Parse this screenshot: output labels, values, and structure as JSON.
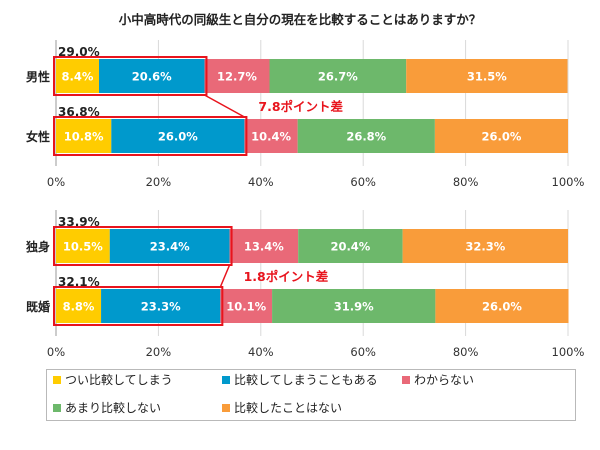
{
  "chart_data": {
    "type": "bar",
    "stacked": true,
    "orientation": "horizontal",
    "title": "小中高時代の同級生と自分の現在を比較することはありますか？",
    "xlim": [
      0,
      100
    ],
    "x_tick_labels": [
      "0%",
      "20%",
      "40%",
      "60%",
      "80%",
      "100%"
    ],
    "series_names": [
      "つい比較してしまう",
      "比較してしまうこともある",
      "わからない",
      "あまり比較しない",
      "比較したことはない"
    ],
    "colors": [
      "#FFCC00",
      "#0099CC",
      "#E96978",
      "#6DB86B",
      "#F99C3A"
    ],
    "panels": [
      {
        "categories": [
          "男性",
          "女性"
        ],
        "values": [
          [
            8.4,
            20.6,
            12.7,
            26.7,
            31.5
          ],
          [
            10.8,
            26.0,
            10.4,
            26.8,
            26.0
          ]
        ],
        "labels": [
          [
            "8.4%",
            "20.6%",
            "12.7%",
            "26.7%",
            "31.5%"
          ],
          [
            "10.8%",
            "26.0%",
            "10.4%",
            "26.8%",
            "26.0%"
          ]
        ],
        "totals": [
          "29.0%",
          "36.8%"
        ],
        "difference_note": "7.8ポイント差"
      },
      {
        "categories": [
          "独身",
          "既婚"
        ],
        "values": [
          [
            10.5,
            23.4,
            13.4,
            20.4,
            32.3
          ],
          [
            8.8,
            23.3,
            10.1,
            31.9,
            26.0
          ]
        ],
        "labels": [
          [
            "10.5%",
            "23.4%",
            "13.4%",
            "20.4%",
            "32.3%"
          ],
          [
            "8.8%",
            "23.3%",
            "10.1%",
            "31.9%",
            "26.0%"
          ]
        ],
        "totals": [
          "33.9%",
          "32.1%"
        ],
        "difference_note": "1.8ポイント差"
      }
    ],
    "grid": true,
    "legend_position": "bottom"
  }
}
